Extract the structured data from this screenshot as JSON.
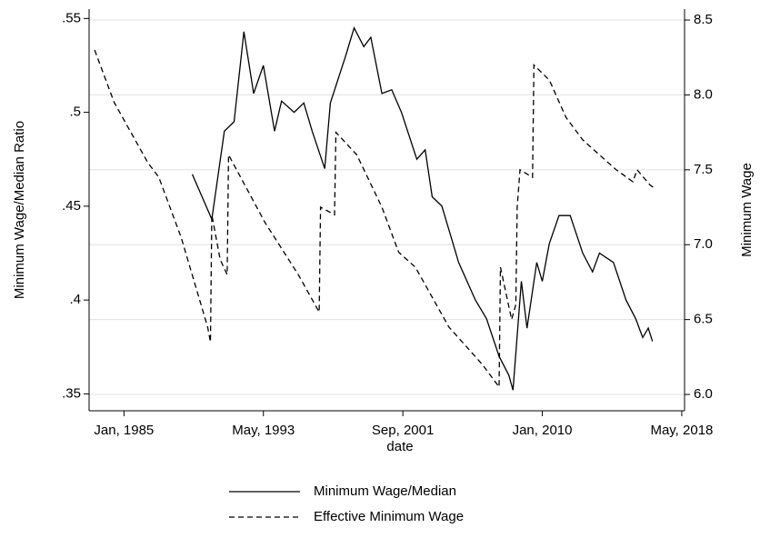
{
  "chart_data": {
    "type": "line",
    "x_label": "date",
    "y_label": "Minimum Wage/Median Ratio",
    "y2_label": "Minimum Wage",
    "xlim": [
      "1982-12",
      "2018-07"
    ],
    "xticks": [
      {
        "value": "1985-01",
        "label": "Jan, 1985"
      },
      {
        "value": "1993-05",
        "label": "May, 1993"
      },
      {
        "value": "2001-09",
        "label": "Sep, 2001"
      },
      {
        "value": "2010-01",
        "label": "Jan, 2010"
      },
      {
        "value": "2018-05",
        "label": "May, 2018"
      }
    ],
    "ylim": [
      0.341,
      0.555
    ],
    "yticks": [
      {
        "value": 0.35,
        "label": ".35"
      },
      {
        "value": 0.4,
        "label": ".4"
      },
      {
        "value": 0.45,
        "label": ".45"
      },
      {
        "value": 0.5,
        "label": ".5"
      },
      {
        "value": 0.55,
        "label": ".55"
      }
    ],
    "y2lim": [
      5.891,
      8.573
    ],
    "y2ticks": [
      {
        "value": 6,
        "label": "6.0"
      },
      {
        "value": 6.5,
        "label": "6.5"
      },
      {
        "value": 7,
        "label": "7.0"
      },
      {
        "value": 7.5,
        "label": "7.5"
      },
      {
        "value": 8,
        "label": "8.0"
      },
      {
        "value": 8.5,
        "label": "8.5"
      }
    ],
    "grid": true,
    "legend": "bottom",
    "series": [
      {
        "name": "Minimum Wage/Median",
        "color": "#000000",
        "style": "solid",
        "x": [
          "1989-02",
          "1990-04",
          "1991-01",
          "1991-08",
          "1992-03",
          "1992-10",
          "1993-05",
          "1994-01",
          "1994-06",
          "1995-03",
          "1995-10",
          "1996-04",
          "1997-01",
          "1997-05",
          "1998-04",
          "1998-10",
          "1999-05",
          "1999-10",
          "2000-06",
          "2001-01",
          "2001-08",
          "2002-07",
          "2003-01",
          "2003-06",
          "2004-01",
          "2005-01",
          "2006-01",
          "2006-09",
          "2007-06",
          "2008-01",
          "2008-04",
          "2008-10",
          "2009-02",
          "2009-09",
          "2010-01",
          "2010-06",
          "2011-01",
          "2011-09",
          "2012-06",
          "2013-01",
          "2013-06",
          "2014-04",
          "2015-01",
          "2015-08",
          "2016-01",
          "2016-05",
          "2016-08"
        ],
        "values": [
          0.467,
          0.443,
          0.49,
          0.495,
          0.543,
          0.51,
          0.525,
          0.49,
          0.506,
          0.5,
          0.505,
          0.49,
          0.47,
          0.505,
          0.53,
          0.545,
          0.535,
          0.54,
          0.51,
          0.512,
          0.5,
          0.475,
          0.48,
          0.455,
          0.45,
          0.42,
          0.4,
          0.39,
          0.37,
          0.36,
          0.352,
          0.41,
          0.385,
          0.42,
          0.41,
          0.43,
          0.445,
          0.445,
          0.425,
          0.415,
          0.425,
          0.42,
          0.4,
          0.39,
          0.38,
          0.385,
          0.378
        ]
      },
      {
        "name": "Effective Minimum Wage",
        "color": "#000000",
        "style": "dashed",
        "axis": "y2",
        "x": [
          "1983-04",
          "1984-06",
          "1986-06",
          "1987-02",
          "1988-06",
          "1990-01",
          "1990-03",
          "1990-04",
          "1990-10",
          "1991-03",
          "1991-04",
          "1993-06",
          "1995-06",
          "1996-09",
          "1996-10",
          "1997-08",
          "1997-09",
          "1998-12",
          "2000-06",
          "2001-06",
          "2002-06",
          "2004-06",
          "2006-06",
          "2007-06",
          "2007-07",
          "2008-03",
          "2008-06",
          "2008-07",
          "2008-09",
          "2009-06",
          "2009-07",
          "2010-06",
          "2011-06",
          "2012-06",
          "2013-06",
          "2014-06",
          "2015-06",
          "2015-09",
          "2016-06",
          "2016-09"
        ],
        "values": [
          8.3,
          7.95,
          7.55,
          7.45,
          7.05,
          6.45,
          6.35,
          7.2,
          6.9,
          6.8,
          7.6,
          7.15,
          6.8,
          6.55,
          7.25,
          7.2,
          7.75,
          7.6,
          7.25,
          6.95,
          6.85,
          6.45,
          6.2,
          6.05,
          6.85,
          6.5,
          6.6,
          7.25,
          7.5,
          7.45,
          8.2,
          8.1,
          7.85,
          7.7,
          7.6,
          7.5,
          7.42,
          7.5,
          7.4,
          7.38
        ]
      }
    ]
  }
}
